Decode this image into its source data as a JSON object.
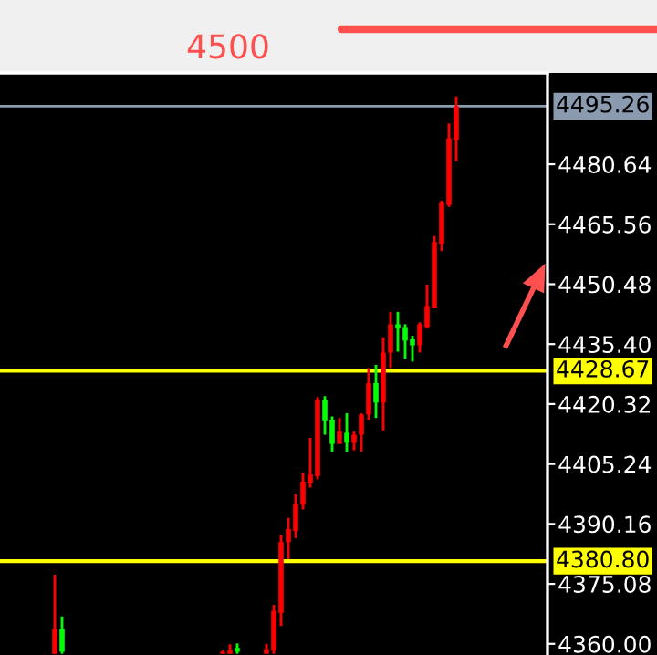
{
  "chart_data": {
    "type": "candlestick",
    "annotations": [
      "4500"
    ],
    "categories": [
      null,
      null,
      null,
      null,
      null,
      null,
      null,
      null,
      null,
      null,
      null,
      null,
      null,
      null,
      null,
      null,
      null,
      null,
      null,
      null,
      null,
      null,
      null,
      null,
      null,
      null,
      null,
      null,
      null,
      null,
      null,
      null,
      null,
      null,
      null,
      null,
      null,
      null,
      null,
      null,
      null,
      null,
      null,
      null,
      null,
      null,
      null,
      null,
      null,
      null,
      null,
      null,
      null,
      null,
      null,
      null,
      null,
      null,
      null,
      null,
      null,
      null,
      null,
      null,
      null,
      null,
      null,
      null,
      null,
      null,
      null,
      null,
      null,
      null,
      null
    ],
    "ohlc": [
      null,
      null,
      null,
      null,
      null,
      null,
      null,
      [
        4357.5,
        4377.4,
        4357.5,
        4363.7
      ],
      [
        4363.7,
        4366.9,
        4357.5,
        4358.0
      ],
      null,
      null,
      null,
      null,
      null,
      null,
      null,
      null,
      null,
      null,
      null,
      null,
      null,
      null,
      null,
      null,
      null,
      null,
      null,
      null,
      null,
      [
        4357.5,
        4358.3,
        4357.5,
        4358.0
      ],
      [
        4357.5,
        4359.9,
        4357.5,
        4358.5
      ],
      [
        4359.0,
        4360.1,
        4357.5,
        4358.0
      ],
      null,
      null,
      null,
      [
        4357.5,
        4360.0,
        4357.5,
        4358.7
      ],
      [
        4358.3,
        4369.8,
        4357.5,
        4368.3
      ],
      [
        4367.8,
        4387.4,
        4364.5,
        4385.6
      ],
      [
        4385.6,
        4391.7,
        4381.3,
        4388.9
      ],
      [
        4388.4,
        4397.6,
        4386.6,
        4395.3
      ],
      [
        4395.0,
        4403.0,
        4393.8,
        4400.8
      ],
      [
        4400.4,
        4411.8,
        4399.3,
        4402.6
      ],
      [
        4402.2,
        4422.1,
        4401.4,
        4421.4
      ],
      [
        4421.4,
        4422.3,
        4412.6,
        4416.2
      ],
      [
        4416.4,
        4417.2,
        4408.3,
        4410.3
      ],
      [
        4410.3,
        4416.8,
        4410.3,
        4413.4
      ],
      [
        4413.1,
        4418.0,
        4408.3,
        4410.6
      ],
      [
        4410.6,
        4413.4,
        4408.7,
        4412.6
      ],
      [
        4412.6,
        4418.0,
        4408.3,
        4417.7
      ],
      [
        4417.7,
        4429.4,
        4416.4,
        4425.6
      ],
      [
        4425.6,
        4430.2,
        4416.8,
        4420.7
      ],
      [
        4420.7,
        4437.1,
        4413.7,
        4433.3
      ],
      [
        4433.3,
        4443.5,
        4429.4,
        4440.4
      ],
      [
        4440.4,
        4443.5,
        4433.5,
        4439.3
      ],
      [
        4439.7,
        4440.4,
        4431.7,
        4436.3
      ],
      [
        4436.6,
        4437.5,
        4431.0,
        4435.1
      ],
      [
        4435.1,
        4440.9,
        4433.3,
        4440.4
      ],
      [
        4439.7,
        4450.4,
        4439.3,
        4445.0
      ],
      [
        4444.4,
        4462.6,
        4444.4,
        4461.1
      ],
      [
        4460.5,
        4471.5,
        4458.8,
        4471.1
      ],
      [
        4470.4,
        4490.9,
        4469.9,
        4487.2
      ],
      [
        4486.7,
        4497.7,
        4481.4,
        4495.26
      ],
      null,
      null,
      null,
      null,
      null,
      null,
      null,
      null,
      null,
      null,
      null,
      null
    ],
    "colors": [
      null,
      null,
      null,
      null,
      null,
      null,
      null,
      "#ff0000",
      "#00ff00",
      null,
      null,
      null,
      null,
      null,
      null,
      null,
      null,
      null,
      null,
      null,
      null,
      null,
      null,
      null,
      null,
      null,
      null,
      null,
      null,
      null,
      "#ff0000",
      "#ff0000",
      "#00ff00",
      null,
      null,
      null,
      "#ff0000",
      "#ff0000",
      "#ff0000",
      "#ff0000",
      "#ff0000",
      "#ff0000",
      "#ff0000",
      "#ff0000",
      "#00ff00",
      "#00ff00",
      "#ff0000",
      "#00ff00",
      "#ff0000",
      "#ff0000",
      "#ff0000",
      "#00ff00",
      "#ff0000",
      "#ff0000",
      "#00ff00",
      "#00ff00",
      "#00ff00",
      "#ff0000",
      "#ff0000",
      "#ff0000",
      "#ff0000",
      "#ff0000",
      "#ff0000",
      null,
      null,
      null,
      null,
      null,
      null,
      null,
      null,
      null,
      null,
      null,
      null
    ],
    "ylim": [
      4357.2,
      4503.6
    ],
    "yticks": [
      4480.64,
      4465.56,
      4450.48,
      {
        "value": 4435.4,
        "label": "4435.40"
      },
      4420.32,
      4405.24,
      4390.16,
      4375.08,
      {
        "value": 4360.0,
        "label": "4360.00"
      }
    ],
    "ref_lines": [
      {
        "axis": "y",
        "value": 4495.26,
        "label": "4495.26",
        "color": "#8a9bb0"
      },
      {
        "axis": "y",
        "value": 4428.67,
        "label": "4428.67",
        "color": "#ffff00"
      },
      {
        "axis": "y",
        "value": 4380.8,
        "label": "4380.80",
        "color": "#ffff00"
      }
    ],
    "tick_labels": "y",
    "grid": false
  }
}
